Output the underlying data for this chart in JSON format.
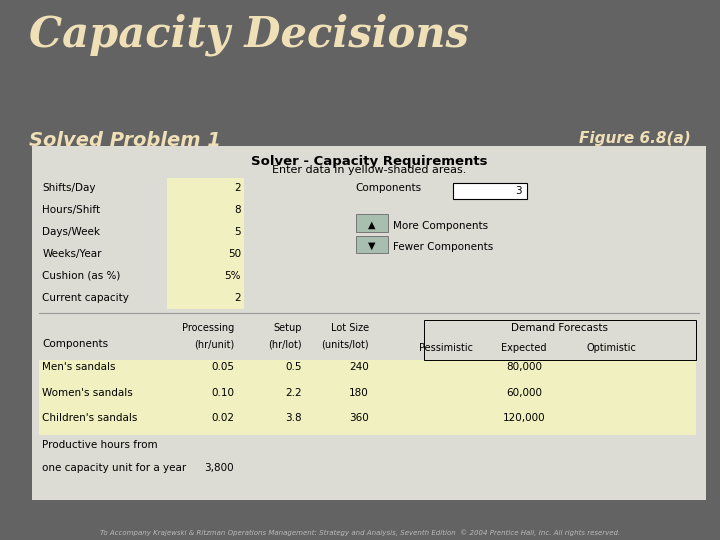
{
  "bg_color": "#636363",
  "title": "Capacity Decisions",
  "subtitle": "Solved Problem 1",
  "figure_ref": "Figure 6.8(a)",
  "title_color": "#f0e0b8",
  "subtitle_color": "#f0e0b8",
  "figure_ref_color": "#f0e0b8",
  "footer": "To Accompany Krajewski & Ritzman Operations Management: Strategy and Analysis, Seventh Edition  © 2004 Prentice Hall, Inc. All rights reserved.",
  "table_title": "Solver - Capacity Requirements",
  "table_subtitle": "Enter data in yellow-shaded areas.",
  "yellow_color": "#f0f0c0",
  "table_bg": "#e8e8e8",
  "left_labels": [
    "Shifts/Day",
    "Hours/Shift",
    "Days/Week",
    "Weeks/Year",
    "Cushion (as %)",
    "Current capacity"
  ],
  "left_values": [
    "2",
    "8",
    "5",
    "50",
    "5%",
    "2"
  ],
  "components_label": "Components",
  "components_value": "3",
  "more_label": "More Components",
  "fewer_label": "Fewer Components",
  "demand_header": "Demand Forecasts",
  "components_col_header": "Components",
  "rows": [
    {
      "name": "Men's sandals",
      "processing": "0.05",
      "setup": "0.5",
      "lot_size": "240",
      "pessimistic": "",
      "expected": "80,000",
      "optimistic": ""
    },
    {
      "name": "Women's sandals",
      "processing": "0.10",
      "setup": "2.2",
      "lot_size": "180",
      "pessimistic": "",
      "expected": "60,000",
      "optimistic": ""
    },
    {
      "name": "Children's sandals",
      "processing": "0.02",
      "setup": "3.8",
      "lot_size": "360",
      "pessimistic": "",
      "expected": "120,000",
      "optimistic": ""
    }
  ],
  "productive_hours_label1": "Productive hours from",
  "productive_hours_label2": "one capacity unit for a year",
  "productive_hours_value": "3,800"
}
